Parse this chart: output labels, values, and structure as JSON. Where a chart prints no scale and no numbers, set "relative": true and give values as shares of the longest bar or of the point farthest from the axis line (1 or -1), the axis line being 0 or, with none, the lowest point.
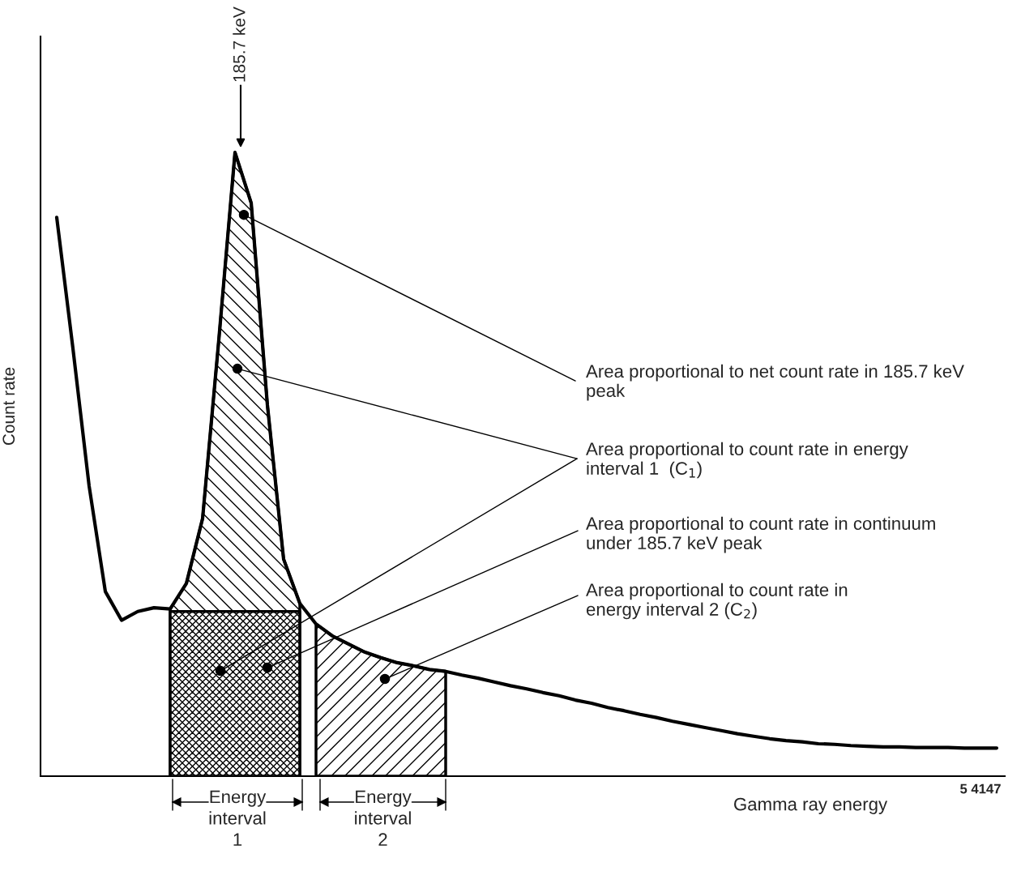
{
  "chart_data": {
    "type": "line",
    "relative": true,
    "xlabel": "Gamma ray energy",
    "ylabel": "Count rate",
    "legend": false,
    "categories": [
      null,
      null,
      null,
      null,
      null,
      null,
      null,
      null,
      null,
      null,
      null,
      null,
      null,
      null,
      null,
      null,
      null,
      null,
      null,
      null,
      null,
      null,
      null,
      null,
      null,
      null,
      null,
      null,
      null,
      null,
      null,
      null,
      null,
      null,
      null,
      null,
      null,
      null,
      null,
      null,
      null,
      null,
      null,
      null,
      null,
      null,
      null,
      null,
      null,
      null,
      null,
      null,
      null,
      null,
      null,
      null,
      null,
      null,
      null
    ],
    "series": [
      {
        "color": "#000000",
        "values": [
          0.896,
          0.686,
          0.465,
          0.296,
          0.25,
          0.264,
          0.27,
          0.268,
          0.309,
          0.413,
          0.699,
          1.0,
          0.919,
          0.595,
          0.348,
          0.277,
          0.244,
          0.225,
          0.212,
          0.199,
          0.19,
          0.182,
          0.177,
          0.171,
          0.168,
          0.162,
          0.157,
          0.151,
          0.145,
          0.14,
          0.134,
          0.129,
          0.122,
          0.117,
          0.11,
          0.105,
          0.099,
          0.094,
          0.088,
          0.083,
          0.078,
          0.073,
          0.068,
          0.064,
          0.06,
          0.057,
          0.055,
          0.052,
          0.051,
          0.049,
          0.048,
          0.047,
          0.047,
          0.046,
          0.046,
          0.046,
          0.045,
          0.045,
          0.045
        ]
      },
      {
        "type": "area",
        "color": "#000000",
        "values": [
          null,
          null,
          null,
          null,
          null,
          null,
          null,
          0.268,
          0.309,
          0.413,
          0.699,
          1.0,
          0.919,
          0.595,
          0.348,
          0.277,
          null,
          null,
          null,
          null,
          null,
          null,
          null,
          null,
          null,
          null,
          null,
          null,
          null,
          null,
          null,
          null,
          null,
          null,
          null,
          null,
          null,
          null,
          null,
          null,
          null,
          null,
          null,
          null,
          null,
          null,
          null,
          null,
          null,
          null,
          null,
          null,
          null,
          null,
          null,
          null,
          null,
          null,
          null
        ]
      },
      {
        "type": "area",
        "color": "#000000",
        "values": [
          null,
          null,
          null,
          null,
          null,
          null,
          null,
          0.264,
          0.264,
          0.264,
          0.264,
          0.264,
          0.264,
          0.264,
          0.264,
          0.264,
          null,
          null,
          null,
          null,
          null,
          null,
          null,
          null,
          null,
          null,
          null,
          null,
          null,
          null,
          null,
          null,
          null,
          null,
          null,
          null,
          null,
          null,
          null,
          null,
          null,
          null,
          null,
          null,
          null,
          null,
          null,
          null,
          null,
          null,
          null,
          null,
          null,
          null,
          null,
          null,
          null,
          null,
          null
        ]
      },
      {
        "type": "area",
        "color": "#000000",
        "values": [
          null,
          null,
          null,
          null,
          null,
          null,
          null,
          null,
          null,
          null,
          null,
          null,
          null,
          null,
          null,
          null,
          0.244,
          0.225,
          0.212,
          0.199,
          0.19,
          0.182,
          0.177,
          0.171,
          0.168,
          null,
          null,
          null,
          null,
          null,
          null,
          null,
          null,
          null,
          null,
          null,
          null,
          null,
          null,
          null,
          null,
          null,
          null,
          null,
          null,
          null,
          null,
          null,
          null,
          null,
          null,
          null,
          null,
          null,
          null,
          null,
          null,
          null,
          null
        ]
      }
    ],
    "annotations": [
      "185.7 keV",
      "Area proportional to net count rate in 185.7 keV\npeak",
      "Area proportional to count rate in energy\ninterval 1  (C$_{1}$)",
      "Area proportional to count rate in continuum\nunder 185.7 keV peak",
      "Area proportional to count rate in\nenergy interval 2 (C$_{2}$)",
      "Energy\ninterval\n1",
      "Energy\ninterval\n2",
      "5 4147"
    ]
  }
}
